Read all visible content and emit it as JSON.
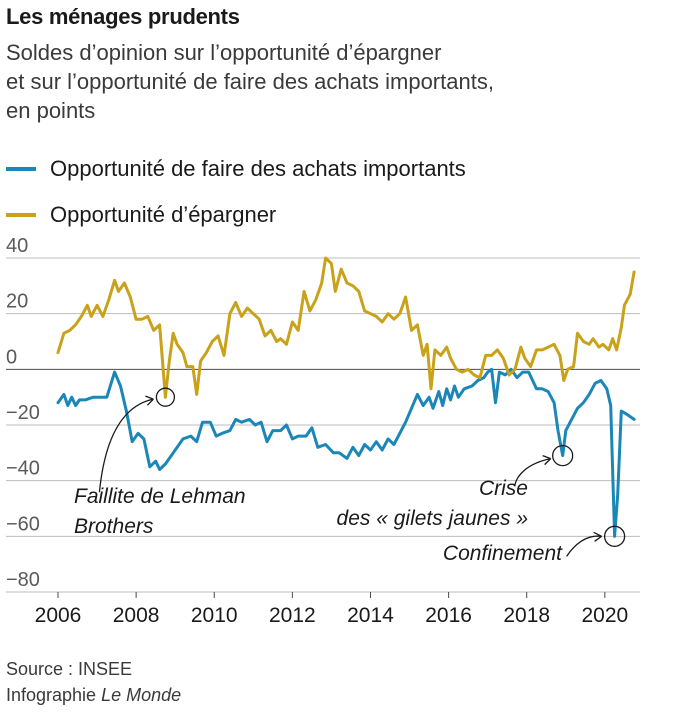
{
  "title": "Les ménages prudents",
  "subtitle_lines": [
    "Soldes d’opinion sur l’opportunité d’épargner",
    "et sur l’opportunité de faire des achats importants,",
    "en points"
  ],
  "legend": [
    {
      "label": "Opportunité de faire des achats importants",
      "color": "#1a87b8"
    },
    {
      "label": "Opportunité d’épargner",
      "color": "#c9a21a"
    }
  ],
  "footer": {
    "source": "Source : INSEE",
    "credit_prefix": "Infographie ",
    "credit_italic": "Le Monde"
  },
  "chart_data": {
    "type": "line",
    "xlim": [
      2006,
      2020.9
    ],
    "ylim": [
      -80,
      40
    ],
    "x_ticks": [
      "2006",
      "2008",
      "2010",
      "2012",
      "2014",
      "2016",
      "2018",
      "2020"
    ],
    "x_tick_values": [
      2006,
      2008,
      2010,
      2012,
      2014,
      2016,
      2018,
      2020
    ],
    "y_ticks": [
      "40",
      "20",
      "0",
      "−20",
      "−40",
      "−60",
      "−80"
    ],
    "y_tick_values": [
      40,
      20,
      0,
      -20,
      -40,
      -60,
      -80
    ],
    "series": [
      {
        "name": "Opportunité de faire des achats importants",
        "color": "#1a87b8",
        "points": [
          [
            2006.0,
            -12
          ],
          [
            2006.15,
            -9
          ],
          [
            2006.25,
            -13
          ],
          [
            2006.35,
            -10
          ],
          [
            2006.45,
            -13
          ],
          [
            2006.55,
            -11
          ],
          [
            2006.7,
            -11
          ],
          [
            2006.9,
            -10
          ],
          [
            2007.1,
            -10
          ],
          [
            2007.25,
            -10
          ],
          [
            2007.45,
            -1
          ],
          [
            2007.6,
            -6
          ],
          [
            2007.75,
            -15
          ],
          [
            2007.9,
            -26
          ],
          [
            2008.05,
            -23
          ],
          [
            2008.2,
            -25
          ],
          [
            2008.35,
            -35
          ],
          [
            2008.5,
            -33
          ],
          [
            2008.6,
            -36
          ],
          [
            2008.75,
            -34
          ],
          [
            2008.9,
            -31
          ],
          [
            2009.05,
            -28
          ],
          [
            2009.2,
            -25
          ],
          [
            2009.4,
            -24
          ],
          [
            2009.55,
            -26
          ],
          [
            2009.7,
            -19
          ],
          [
            2009.9,
            -19
          ],
          [
            2010.05,
            -24
          ],
          [
            2010.2,
            -23
          ],
          [
            2010.4,
            -22
          ],
          [
            2010.55,
            -18
          ],
          [
            2010.7,
            -19
          ],
          [
            2010.9,
            -18
          ],
          [
            2011.05,
            -20
          ],
          [
            2011.2,
            -19
          ],
          [
            2011.35,
            -26
          ],
          [
            2011.5,
            -22
          ],
          [
            2011.7,
            -22
          ],
          [
            2011.85,
            -20
          ],
          [
            2012.0,
            -25
          ],
          [
            2012.15,
            -24
          ],
          [
            2012.35,
            -24
          ],
          [
            2012.5,
            -21
          ],
          [
            2012.65,
            -28
          ],
          [
            2012.85,
            -27
          ],
          [
            2013.05,
            -30
          ],
          [
            2013.2,
            -30
          ],
          [
            2013.4,
            -32
          ],
          [
            2013.55,
            -28
          ],
          [
            2013.7,
            -31
          ],
          [
            2013.85,
            -27
          ],
          [
            2014.0,
            -29
          ],
          [
            2014.15,
            -26
          ],
          [
            2014.3,
            -29
          ],
          [
            2014.45,
            -25
          ],
          [
            2014.6,
            -27
          ],
          [
            2014.75,
            -23
          ],
          [
            2014.9,
            -19
          ],
          [
            2015.05,
            -14
          ],
          [
            2015.2,
            -9
          ],
          [
            2015.35,
            -13
          ],
          [
            2015.5,
            -10
          ],
          [
            2015.6,
            -14
          ],
          [
            2015.75,
            -8
          ],
          [
            2015.85,
            -13
          ],
          [
            2015.95,
            -7
          ],
          [
            2016.05,
            -11
          ],
          [
            2016.15,
            -6
          ],
          [
            2016.25,
            -10
          ],
          [
            2016.4,
            -7
          ],
          [
            2016.6,
            -6
          ],
          [
            2016.75,
            -4
          ],
          [
            2016.9,
            -3
          ],
          [
            2017.0,
            -1
          ],
          [
            2017.1,
            0
          ],
          [
            2017.2,
            -12
          ],
          [
            2017.3,
            -1
          ],
          [
            2017.45,
            -2
          ],
          [
            2017.6,
            0
          ],
          [
            2017.75,
            -3
          ],
          [
            2017.9,
            -1
          ],
          [
            2018.05,
            -1
          ],
          [
            2018.25,
            -7
          ],
          [
            2018.4,
            -7
          ],
          [
            2018.55,
            -8
          ],
          [
            2018.7,
            -12
          ],
          [
            2018.8,
            -22
          ],
          [
            2018.92,
            -31
          ],
          [
            2019.0,
            -22
          ],
          [
            2019.15,
            -18
          ],
          [
            2019.3,
            -14
          ],
          [
            2019.45,
            -12
          ],
          [
            2019.6,
            -9
          ],
          [
            2019.75,
            -5
          ],
          [
            2019.9,
            -4
          ],
          [
            2020.05,
            -7
          ],
          [
            2020.15,
            -13
          ],
          [
            2020.25,
            -60
          ],
          [
            2020.33,
            -45
          ],
          [
            2020.42,
            -15
          ],
          [
            2020.55,
            -16
          ],
          [
            2020.75,
            -18
          ]
        ]
      },
      {
        "name": "Opportunité d’épargner",
        "color": "#c9a21a",
        "points": [
          [
            2006.0,
            6
          ],
          [
            2006.15,
            13
          ],
          [
            2006.3,
            14
          ],
          [
            2006.45,
            16
          ],
          [
            2006.6,
            19
          ],
          [
            2006.75,
            23
          ],
          [
            2006.85,
            19
          ],
          [
            2007.0,
            23
          ],
          [
            2007.15,
            19
          ],
          [
            2007.3,
            25
          ],
          [
            2007.45,
            32
          ],
          [
            2007.55,
            28
          ],
          [
            2007.7,
            31
          ],
          [
            2007.85,
            26
          ],
          [
            2008.0,
            18
          ],
          [
            2008.15,
            18
          ],
          [
            2008.3,
            19
          ],
          [
            2008.45,
            14
          ],
          [
            2008.6,
            16
          ],
          [
            2008.75,
            -10
          ],
          [
            2008.85,
            3
          ],
          [
            2008.95,
            13
          ],
          [
            2009.05,
            9
          ],
          [
            2009.2,
            6
          ],
          [
            2009.3,
            1
          ],
          [
            2009.45,
            1
          ],
          [
            2009.55,
            -9
          ],
          [
            2009.65,
            3
          ],
          [
            2009.8,
            6
          ],
          [
            2009.95,
            10
          ],
          [
            2010.1,
            12
          ],
          [
            2010.25,
            5
          ],
          [
            2010.4,
            20
          ],
          [
            2010.55,
            24
          ],
          [
            2010.7,
            19
          ],
          [
            2010.85,
            22
          ],
          [
            2011.0,
            20
          ],
          [
            2011.15,
            18
          ],
          [
            2011.3,
            12
          ],
          [
            2011.45,
            14
          ],
          [
            2011.6,
            10
          ],
          [
            2011.7,
            11
          ],
          [
            2011.85,
            9
          ],
          [
            2012.0,
            17
          ],
          [
            2012.15,
            14
          ],
          [
            2012.3,
            28
          ],
          [
            2012.45,
            21
          ],
          [
            2012.6,
            25
          ],
          [
            2012.75,
            31
          ],
          [
            2012.85,
            40
          ],
          [
            2013.0,
            38
          ],
          [
            2013.1,
            28
          ],
          [
            2013.25,
            36
          ],
          [
            2013.4,
            31
          ],
          [
            2013.55,
            30
          ],
          [
            2013.7,
            28
          ],
          [
            2013.85,
            21
          ],
          [
            2014.0,
            20
          ],
          [
            2014.15,
            19
          ],
          [
            2014.3,
            17
          ],
          [
            2014.45,
            20
          ],
          [
            2014.6,
            18
          ],
          [
            2014.75,
            20
          ],
          [
            2014.9,
            26
          ],
          [
            2015.05,
            14
          ],
          [
            2015.2,
            16
          ],
          [
            2015.35,
            5
          ],
          [
            2015.45,
            9
          ],
          [
            2015.55,
            -7
          ],
          [
            2015.65,
            7
          ],
          [
            2015.8,
            5
          ],
          [
            2015.95,
            8
          ],
          [
            2016.05,
            4
          ],
          [
            2016.2,
            0
          ],
          [
            2016.35,
            -1
          ],
          [
            2016.5,
            0
          ],
          [
            2016.65,
            -2
          ],
          [
            2016.8,
            -3
          ],
          [
            2016.95,
            5
          ],
          [
            2017.1,
            5
          ],
          [
            2017.25,
            7
          ],
          [
            2017.4,
            4
          ],
          [
            2017.55,
            -2
          ],
          [
            2017.7,
            0
          ],
          [
            2017.85,
            8
          ],
          [
            2017.95,
            4
          ],
          [
            2018.1,
            1
          ],
          [
            2018.25,
            7
          ],
          [
            2018.4,
            7
          ],
          [
            2018.55,
            8
          ],
          [
            2018.7,
            9
          ],
          [
            2018.85,
            5
          ],
          [
            2018.95,
            -4
          ],
          [
            2019.05,
            0
          ],
          [
            2019.2,
            1
          ],
          [
            2019.3,
            13
          ],
          [
            2019.45,
            10
          ],
          [
            2019.6,
            9
          ],
          [
            2019.7,
            11
          ],
          [
            2019.85,
            8
          ],
          [
            2019.95,
            9
          ],
          [
            2020.1,
            7
          ],
          [
            2020.2,
            11
          ],
          [
            2020.3,
            7
          ],
          [
            2020.42,
            15
          ],
          [
            2020.5,
            23
          ],
          [
            2020.65,
            27
          ],
          [
            2020.75,
            35
          ]
        ]
      }
    ],
    "annotations": [
      {
        "lines": [
          "Faillite de Lehman",
          "Brothers"
        ],
        "point": [
          2008.75,
          -10
        ],
        "align": "left"
      },
      {
        "lines": [
          "Crise",
          "des « gilets jaunes »"
        ],
        "point": [
          2018.92,
          -31
        ],
        "align": "right"
      },
      {
        "lines": [
          "Confinement"
        ],
        "point": [
          2020.25,
          -60
        ],
        "align": "right"
      }
    ]
  }
}
